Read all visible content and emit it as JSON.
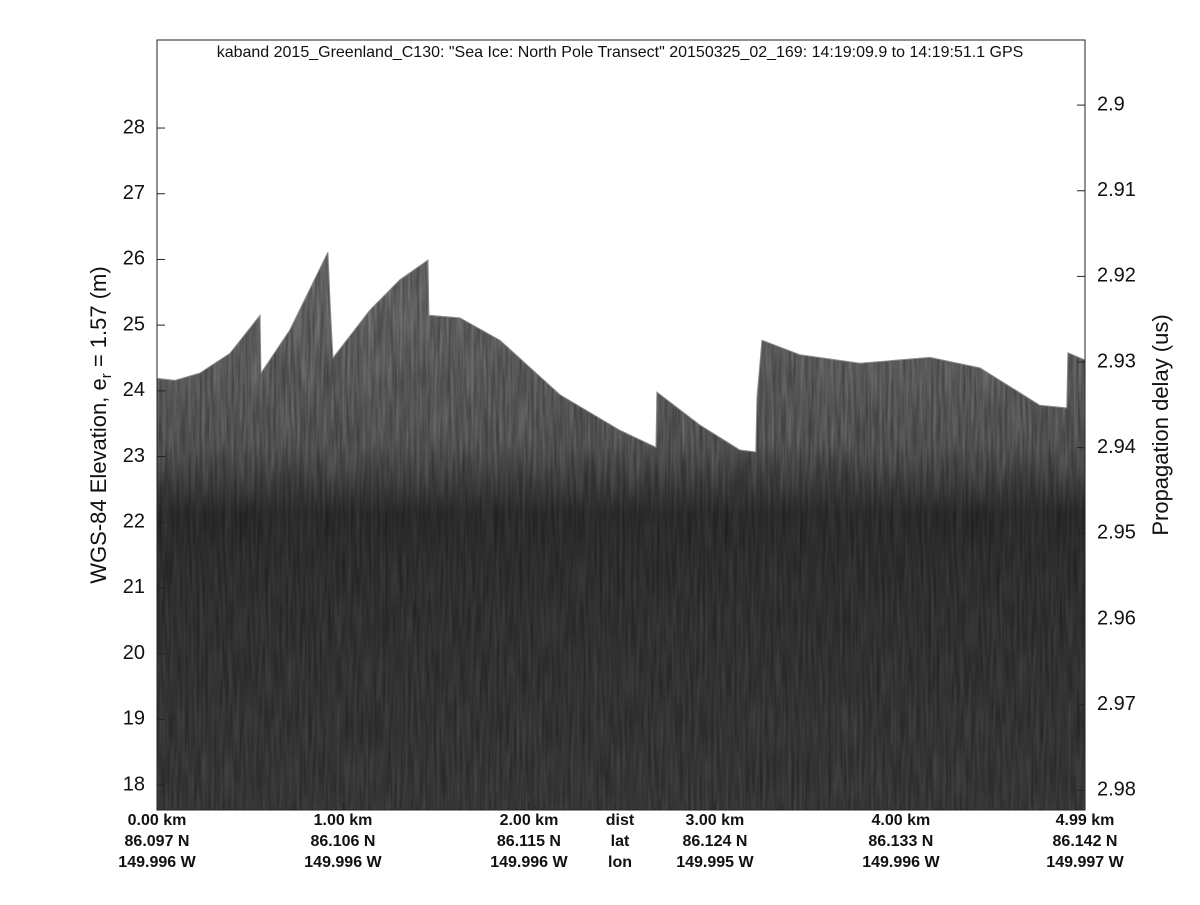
{
  "chart_data": {
    "type": "radargram",
    "title": "kaband 2015_Greenland_C130: \"Sea Ice: North Pole Transect\"  20150325_02_169: 14:19:09.9 to 14:19:51.1 GPS",
    "ylabel": {
      "text": "WGS-84 Elevation, e",
      "subscript": "r",
      "rest": " = 1.57 (m)"
    },
    "y2label": "Propagation delay (us)",
    "xlim": [
      0,
      4.99
    ],
    "ylim": [
      17.62,
      29.34
    ],
    "yticks": [
      18,
      19,
      20,
      21,
      22,
      23,
      24,
      25,
      26,
      27,
      28
    ],
    "y2lim": [
      2.9823,
      2.8924
    ],
    "y2ticks": [
      2.9,
      2.91,
      2.92,
      2.93,
      2.94,
      2.95,
      2.96,
      2.97,
      2.98
    ],
    "xticks": [
      {
        "value": 0,
        "label": "0.00 km"
      },
      {
        "value": 1,
        "label": "1.00 km"
      },
      {
        "value": 2,
        "label": "2.00 km"
      },
      {
        "value": 3,
        "label": "3.00 km"
      },
      {
        "value": 4,
        "label": "4.00 km"
      },
      {
        "value": 4.99,
        "label": "4.99 km"
      }
    ],
    "lat": [
      "86.097 N",
      "86.106 N",
      "86.115 N",
      "86.124 N",
      "86.133 N",
      "86.142 N"
    ],
    "lon": [
      "149.996 W",
      "149.996 W",
      "149.996 W",
      "149.995 W",
      "149.996 W",
      "149.997 W"
    ],
    "row_labels": [
      "dist",
      "lat",
      "lon"
    ],
    "x": [
      0,
      0.097,
      0.231,
      0.392,
      0.554,
      0.559,
      0.715,
      0.919,
      0.93,
      0.946,
      1.145,
      1.306,
      1.457,
      1.462,
      1.629,
      1.844,
      2.167,
      2.489,
      2.683,
      2.688,
      2.919,
      3.134,
      3.22,
      3.226,
      3.253,
      3.457,
      3.78,
      4.156,
      4.425,
      4.747,
      4.892,
      4.898,
      4.989
    ],
    "values": [
      24.19,
      24.16,
      24.27,
      24.57,
      25.15,
      24.27,
      24.93,
      26.11,
      25.38,
      24.5,
      25.23,
      25.69,
      25.99,
      25.15,
      25.11,
      24.77,
      23.94,
      23.4,
      23.14,
      23.98,
      23.48,
      23.1,
      23.07,
      23.89,
      24.77,
      24.55,
      24.42,
      24.51,
      24.35,
      23.78,
      23.74,
      24.58,
      24.47
    ]
  }
}
